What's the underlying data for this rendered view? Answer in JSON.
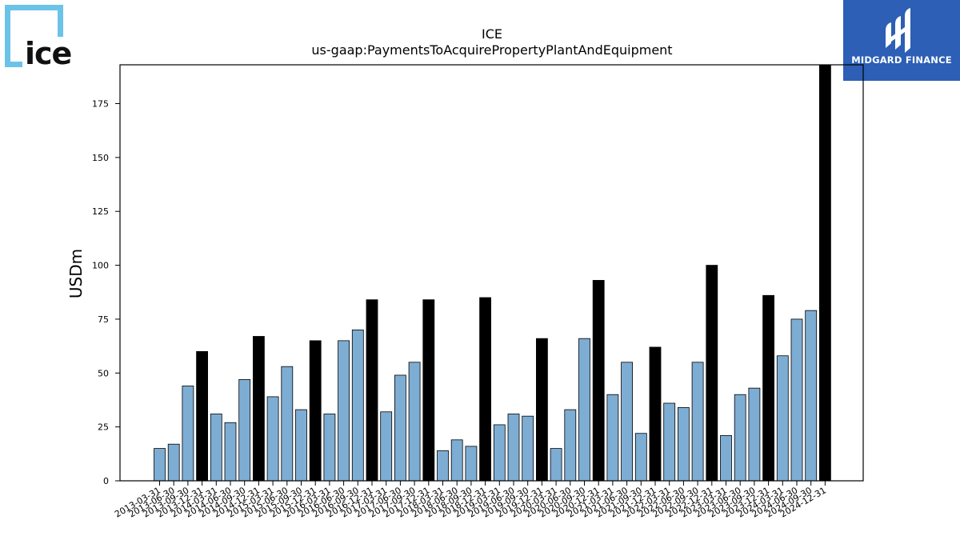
{
  "logos": {
    "left_text": "ice",
    "right_text": "MIDGARD FINANCE"
  },
  "colors": {
    "bar_quarter": "#7eadd3",
    "bar_year_end": "#000000",
    "logo_frame": "#6cc3e8",
    "midgard_bg": "#2c5fb5"
  },
  "chart_data": {
    "type": "bar",
    "title": "ICE",
    "subtitle": "us-gaap:PaymentsToAcquirePropertyPlantAndEquipment",
    "xlabel": "",
    "ylabel": "USDm",
    "ylim": [
      0,
      193
    ],
    "yticks": [
      0,
      25,
      50,
      75,
      100,
      125,
      150,
      175
    ],
    "grid": false,
    "categories": [
      "2013-03-31",
      "2013-06-30",
      "2013-09-30",
      "2013-12-31",
      "2014-03-31",
      "2014-06-30",
      "2014-09-30",
      "2014-12-31",
      "2015-03-31",
      "2015-06-30",
      "2015-09-30",
      "2015-12-31",
      "2016-03-31",
      "2016-06-30",
      "2016-09-30",
      "2016-12-31",
      "2017-03-31",
      "2017-06-30",
      "2017-09-30",
      "2017-12-31",
      "2018-03-31",
      "2018-06-30",
      "2018-09-30",
      "2018-12-31",
      "2019-03-31",
      "2019-06-30",
      "2019-09-30",
      "2019-12-31",
      "2020-03-31",
      "2020-06-30",
      "2020-09-30",
      "2020-12-31",
      "2021-03-31",
      "2021-06-30",
      "2021-09-30",
      "2021-12-31",
      "2022-03-31",
      "2022-06-30",
      "2022-09-30",
      "2022-12-31",
      "2023-03-31",
      "2023-06-30",
      "2023-09-30",
      "2023-12-31",
      "2024-03-31",
      "2024-06-30",
      "2024-09-30",
      "2024-12-31"
    ],
    "values": [
      15,
      17,
      44,
      60,
      31,
      27,
      47,
      67,
      39,
      53,
      33,
      65,
      31,
      65,
      70,
      84,
      32,
      49,
      55,
      84,
      14,
      19,
      16,
      85,
      26,
      31,
      30,
      66,
      15,
      33,
      66,
      93,
      40,
      55,
      22,
      62,
      36,
      34,
      55,
      100,
      21,
      40,
      43,
      86,
      58,
      75,
      79,
      193
    ]
  }
}
